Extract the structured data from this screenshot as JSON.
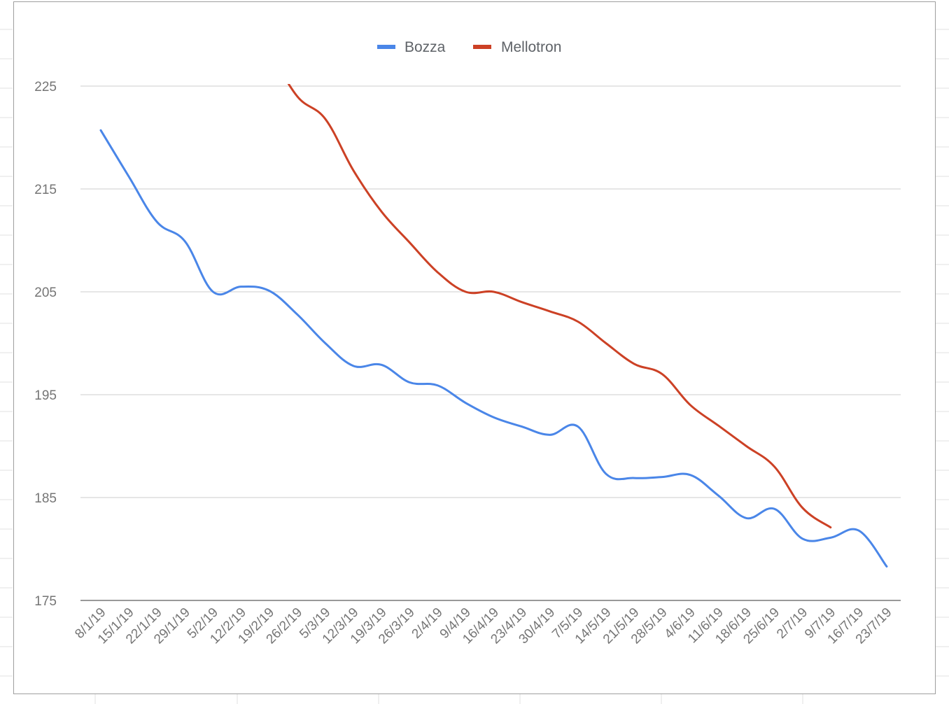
{
  "chart_data": {
    "type": "line",
    "title": "",
    "xlabel": "",
    "ylabel": "",
    "ylim": [
      175,
      229
    ],
    "yticks": [
      175,
      185,
      195,
      205,
      215,
      225
    ],
    "grid": true,
    "legend_position": "top",
    "categories": [
      "8/1/19",
      "15/1/19",
      "22/1/19",
      "29/1/19",
      "5/2/19",
      "12/2/19",
      "19/2/19",
      "26/2/19",
      "5/3/19",
      "12/3/19",
      "19/3/19",
      "26/3/19",
      "2/4/19",
      "9/4/19",
      "16/4/19",
      "23/4/19",
      "30/4/19",
      "7/5/19",
      "14/5/19",
      "21/5/19",
      "28/5/19",
      "4/6/19",
      "11/6/19",
      "18/6/19",
      "25/6/19",
      "2/7/19",
      "9/7/19",
      "16/7/19",
      "23/7/19"
    ],
    "series": [
      {
        "name": "Bozza",
        "color": "#4a86e8",
        "values": [
          220.7,
          216.2,
          211.8,
          209.9,
          205.0,
          205.5,
          205.1,
          202.8,
          200.0,
          197.8,
          197.9,
          196.2,
          195.9,
          194.2,
          192.8,
          191.9,
          191.1,
          191.9,
          187.3,
          186.9,
          187.0,
          187.2,
          185.2,
          183.0,
          183.9,
          181.0,
          181.1,
          181.8,
          178.3
        ]
      },
      {
        "name": "Mellotron",
        "color": "#cc4125",
        "values": [
          null,
          null,
          null,
          null,
          null,
          null,
          228.5,
          224.0,
          221.8,
          216.8,
          212.8,
          209.8,
          206.9,
          205.0,
          205.0,
          204.0,
          203.1,
          202.1,
          200.0,
          198.0,
          197.0,
          194.0,
          192.0,
          190.0,
          188.0,
          184.0,
          182.1,
          null,
          null
        ]
      }
    ]
  },
  "legend": {
    "items": [
      {
        "label": "Bozza",
        "color": "#4a86e8"
      },
      {
        "label": "Mellotron",
        "color": "#cc4125"
      }
    ]
  }
}
